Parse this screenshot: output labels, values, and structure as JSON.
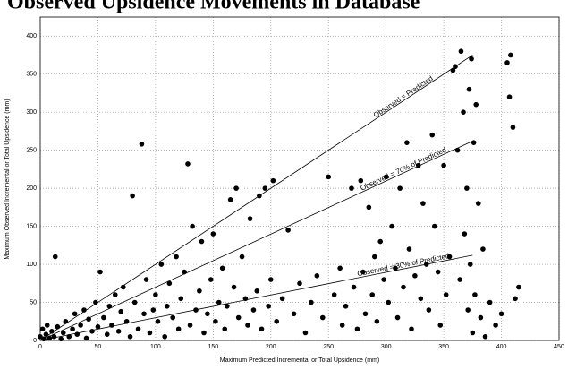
{
  "chart_data": {
    "type": "scatter",
    "title": "Observed Upsidence Movements in Database",
    "x_label": "Maximum Predicted Incremental or Total Upsidence (mm)",
    "y_label": "Maximum Observed Incremental or Total Upsidence (mm)",
    "xlim": [
      0,
      450
    ],
    "xticks": [
      0,
      50,
      100,
      150,
      200,
      250,
      300,
      350,
      400,
      450
    ],
    "ylim": [
      0,
      425
    ],
    "yticks": [
      0,
      50,
      100,
      150,
      200,
      250,
      300,
      350,
      400
    ],
    "grid": true,
    "lines": [
      {
        "name": "Observed = Predicted",
        "x": [
          0,
          375
        ],
        "y": [
          0,
          375
        ]
      },
      {
        "name": "Observed = 70% of Predicted",
        "x": [
          0,
          375
        ],
        "y": [
          0,
          262
        ]
      },
      {
        "name": "Observed = 30% of Predicted",
        "x": [
          0,
          375
        ],
        "y": [
          0,
          112
        ]
      }
    ],
    "series": [
      {
        "color": "#000000",
        "x": [
          0,
          2,
          3,
          5,
          6,
          8,
          10,
          12,
          13,
          15,
          18,
          20,
          22,
          25,
          28,
          30,
          32,
          35,
          38,
          40,
          42,
          45,
          48,
          50,
          52,
          55,
          58,
          60,
          62,
          65,
          68,
          70,
          72,
          75,
          78,
          80,
          82,
          85,
          88,
          90,
          92,
          95,
          98,
          100,
          102,
          105,
          108,
          110,
          112,
          115,
          118,
          120,
          122,
          125,
          128,
          130,
          132,
          135,
          138,
          140,
          142,
          145,
          148,
          150,
          152,
          155,
          158,
          160,
          162,
          165,
          168,
          170,
          172,
          175,
          178,
          180,
          182,
          185,
          188,
          190,
          192,
          195,
          198,
          200,
          202,
          205,
          210,
          215,
          220,
          225,
          230,
          235,
          240,
          245,
          250,
          255,
          260,
          262,
          265,
          270,
          272,
          275,
          278,
          280,
          282,
          285,
          288,
          290,
          292,
          295,
          298,
          300,
          302,
          305,
          308,
          310,
          312,
          315,
          318,
          320,
          322,
          325,
          328,
          330,
          332,
          335,
          337,
          340,
          342,
          345,
          347,
          350,
          352,
          355,
          358,
          360,
          362,
          364,
          365,
          367,
          368,
          370,
          371,
          372,
          373,
          374,
          375,
          376,
          377,
          378,
          380,
          382,
          384,
          386,
          390,
          395,
          400,
          405,
          408,
          410,
          412,
          415,
          407
        ],
        "values": [
          5,
          15,
          2,
          8,
          20,
          3,
          12,
          5,
          110,
          18,
          2,
          10,
          25,
          5,
          15,
          35,
          8,
          20,
          40,
          3,
          28,
          12,
          50,
          18,
          90,
          30,
          8,
          45,
          20,
          60,
          12,
          38,
          70,
          25,
          5,
          190,
          50,
          15,
          258,
          35,
          80,
          10,
          40,
          60,
          25,
          100,
          5,
          45,
          75,
          30,
          110,
          15,
          55,
          90,
          232,
          20,
          150,
          40,
          65,
          130,
          10,
          35,
          80,
          140,
          25,
          50,
          95,
          15,
          45,
          185,
          70,
          200,
          30,
          110,
          55,
          20,
          160,
          40,
          65,
          190,
          15,
          200,
          45,
          80,
          210,
          25,
          55,
          145,
          35,
          75,
          10,
          50,
          85,
          30,
          215,
          60,
          95,
          20,
          45,
          200,
          70,
          15,
          210,
          90,
          35,
          175,
          60,
          110,
          25,
          130,
          80,
          215,
          50,
          150,
          95,
          30,
          200,
          70,
          260,
          120,
          15,
          85,
          230,
          55,
          180,
          100,
          40,
          270,
          150,
          90,
          20,
          230,
          60,
          110,
          355,
          360,
          250,
          80,
          380,
          300,
          140,
          200,
          40,
          330,
          100,
          370,
          10,
          260,
          60,
          310,
          180,
          30,
          120,
          5,
          50,
          20,
          35,
          365,
          375,
          280,
          55,
          70,
          320
        ]
      }
    ]
  }
}
